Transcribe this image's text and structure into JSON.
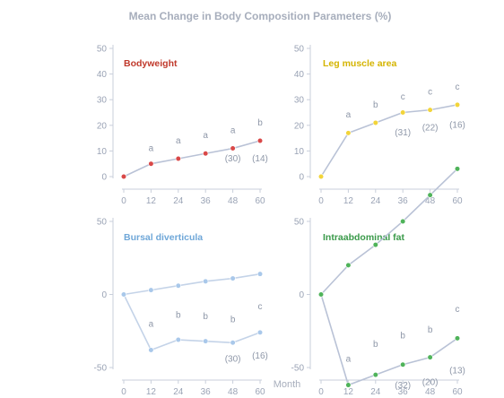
{
  "title": "Mean Change in Body Composition Parameters (%)",
  "xlabel": "Month",
  "chart_data": [
    {
      "type": "line",
      "label": "Bodyweight",
      "label_color": "#c0392b",
      "x": [
        0,
        12,
        24,
        36,
        48,
        60
      ],
      "ylim": [
        0,
        50
      ],
      "yticks": [
        0,
        10,
        20,
        30,
        40,
        50
      ],
      "series": [
        {
          "values": [
            0,
            5,
            7,
            9,
            11,
            14
          ],
          "color": "#b9c2d6",
          "marker": "#d94848"
        }
      ],
      "letters": [
        {
          "x": 12,
          "y": 10,
          "text": "a"
        },
        {
          "x": 24,
          "y": 13,
          "text": "a"
        },
        {
          "x": 36,
          "y": 15,
          "text": "a"
        },
        {
          "x": 48,
          "y": 17,
          "text": "a"
        },
        {
          "x": 60,
          "y": 20,
          "text": "b"
        }
      ],
      "n_labels": [
        {
          "x": 48,
          "y": 6,
          "text": "(30)"
        },
        {
          "x": 60,
          "y": 6,
          "text": "(14)"
        }
      ]
    },
    {
      "type": "line",
      "label": "Leg muscle area",
      "label_color": "#d4b400",
      "x": [
        0,
        12,
        24,
        36,
        48,
        60
      ],
      "ylim": [
        0,
        50
      ],
      "yticks": [
        0,
        10,
        20,
        30,
        40,
        50
      ],
      "series": [
        {
          "values": [
            0,
            17,
            21,
            25,
            26,
            28
          ],
          "color": "#b9c2d6",
          "marker": "#f2d43a"
        }
      ],
      "letters": [
        {
          "x": 12,
          "y": 23,
          "text": "a"
        },
        {
          "x": 24,
          "y": 27,
          "text": "b"
        },
        {
          "x": 36,
          "y": 30,
          "text": "c"
        },
        {
          "x": 48,
          "y": 32,
          "text": "c"
        },
        {
          "x": 60,
          "y": 34,
          "text": "c"
        }
      ],
      "n_labels": [
        {
          "x": 36,
          "y": 16,
          "text": "(31)"
        },
        {
          "x": 48,
          "y": 18,
          "text": "(22)"
        },
        {
          "x": 60,
          "y": 19,
          "text": "(16)"
        }
      ]
    },
    {
      "type": "line",
      "label": "Bursal diverticula",
      "label_color": "#6fa7d8",
      "x": [
        0,
        12,
        24,
        36,
        48,
        60
      ],
      "ylim": [
        -50,
        50
      ],
      "yticks": [
        -50,
        0,
        50
      ],
      "series": [
        {
          "values": [
            0,
            3,
            6,
            9,
            11,
            14
          ],
          "color": "#c4d3e8",
          "marker": "#a9c8ea"
        },
        {
          "values": [
            0,
            -38,
            -31,
            -32,
            -33,
            -26
          ],
          "color": "#c4d3e8",
          "marker": "#a9c8ea"
        }
      ],
      "letters": [
        {
          "x": 12,
          "y": -22,
          "text": "a"
        },
        {
          "x": 24,
          "y": -16,
          "text": "b"
        },
        {
          "x": 36,
          "y": -17,
          "text": "b"
        },
        {
          "x": 48,
          "y": -19,
          "text": "b"
        },
        {
          "x": 60,
          "y": -10,
          "text": "c"
        }
      ],
      "n_labels": [
        {
          "x": 48,
          "y": -46,
          "text": "(30)"
        },
        {
          "x": 60,
          "y": -44,
          "text": "(16)"
        }
      ]
    },
    {
      "type": "line",
      "label": "Intraabdominal fat",
      "label_color": "#3a9a4a",
      "x": [
        0,
        12,
        24,
        36,
        48,
        60
      ],
      "ylim": [
        -50,
        50
      ],
      "yticks": [
        -50,
        0,
        50
      ],
      "series": [
        {
          "values": [
            0,
            20,
            34,
            50,
            68,
            86
          ],
          "color": "#b9c2d6",
          "marker": "#4fb35a"
        },
        {
          "values": [
            0,
            -62,
            -55,
            -48,
            -43,
            -30
          ],
          "color": "#b9c2d6",
          "marker": "#4fb35a"
        }
      ],
      "letters": [
        {
          "x": 12,
          "y": -46,
          "text": "a"
        },
        {
          "x": 24,
          "y": -36,
          "text": "b"
        },
        {
          "x": 36,
          "y": -30,
          "text": "b"
        },
        {
          "x": 48,
          "y": -26,
          "text": "b"
        },
        {
          "x": 60,
          "y": -12,
          "text": "c"
        }
      ],
      "n_labels": [
        {
          "x": 36,
          "y": -64,
          "text": "(32)"
        },
        {
          "x": 48,
          "y": -62,
          "text": "(20)"
        },
        {
          "x": 60,
          "y": -54,
          "text": "(13)"
        }
      ]
    }
  ]
}
